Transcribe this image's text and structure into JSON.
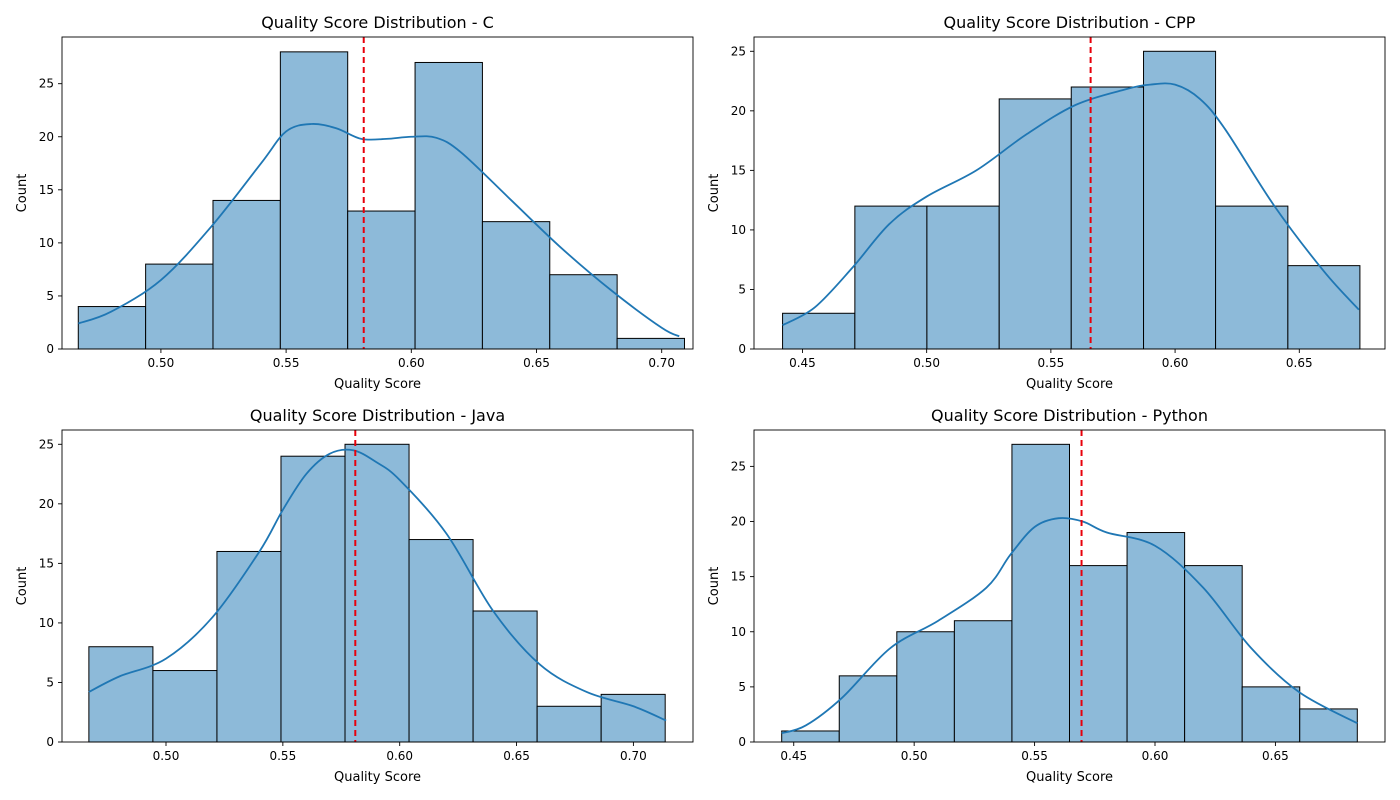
{
  "chart_data": [
    {
      "type": "bar",
      "title": "Quality Score Distribution - C",
      "xlabel": "Quality Score",
      "ylabel": "Count",
      "xlim": [
        0.4605,
        0.7125
      ],
      "ylim": [
        0,
        29.4
      ],
      "xticks": [
        "0.50",
        "0.55",
        "0.60",
        "0.65",
        "0.70"
      ],
      "yticks": [
        "0",
        "5",
        "10",
        "15",
        "20",
        "25"
      ],
      "bin_edges": [
        0.467,
        0.4939,
        0.5208,
        0.5477,
        0.5746,
        0.6015,
        0.6284,
        0.6553,
        0.6822,
        0.7091
      ],
      "values": [
        4,
        8,
        14,
        28,
        13,
        27,
        12,
        7,
        1
      ],
      "mean": 0.581,
      "kde": {
        "x": [
          0.467,
          0.48,
          0.5,
          0.52,
          0.54,
          0.55,
          0.56,
          0.57,
          0.58,
          0.59,
          0.6,
          0.61,
          0.62,
          0.64,
          0.66,
          0.68,
          0.7,
          0.707
        ],
        "y": [
          2.4,
          3.5,
          6.5,
          11.5,
          17.5,
          20.5,
          21.2,
          20.8,
          19.8,
          19.8,
          20.0,
          19.9,
          18.5,
          14.0,
          9.5,
          5.5,
          2.0,
          1.2
        ]
      }
    },
    {
      "type": "bar",
      "title": "Quality Score Distribution - CPP",
      "xlabel": "Quality Score",
      "ylabel": "Count",
      "xlim": [
        0.4305,
        0.6845
      ],
      "ylim": [
        0,
        26.2
      ],
      "xticks": [
        "0.45",
        "0.50",
        "0.55",
        "0.60",
        "0.65"
      ],
      "yticks": [
        "0",
        "5",
        "10",
        "15",
        "20",
        "25"
      ],
      "bin_edges": [
        0.442,
        0.4711,
        0.5001,
        0.5292,
        0.5582,
        0.5873,
        0.6163,
        0.6454,
        0.6744
      ],
      "values": [
        3,
        12,
        12,
        21,
        22,
        25,
        12,
        7
      ],
      "mean": 0.566,
      "kde": {
        "x": [
          0.442,
          0.455,
          0.47,
          0.485,
          0.5,
          0.52,
          0.54,
          0.56,
          0.58,
          0.59,
          0.6,
          0.61,
          0.62,
          0.64,
          0.66,
          0.674
        ],
        "y": [
          2.0,
          3.5,
          6.8,
          10.5,
          12.8,
          15.0,
          18.0,
          20.5,
          21.8,
          22.2,
          22.2,
          21.0,
          18.5,
          12.0,
          6.5,
          3.3
        ]
      }
    },
    {
      "type": "bar",
      "title": "Quality Score Distribution - Java",
      "xlabel": "Quality Score",
      "ylabel": "Count",
      "xlim": [
        0.4555,
        0.7255
      ],
      "ylim": [
        0,
        26.2
      ],
      "xticks": [
        "0.50",
        "0.55",
        "0.60",
        "0.65",
        "0.70"
      ],
      "yticks": [
        "0",
        "5",
        "10",
        "15",
        "20",
        "25"
      ],
      "bin_edges": [
        0.467,
        0.4944,
        0.5218,
        0.5492,
        0.5766,
        0.604,
        0.6314,
        0.6588,
        0.6862,
        0.7136
      ],
      "values": [
        8,
        6,
        16,
        24,
        25,
        17,
        11,
        3,
        4
      ],
      "mean": 0.581,
      "kde": {
        "x": [
          0.467,
          0.48,
          0.5,
          0.52,
          0.54,
          0.55,
          0.56,
          0.57,
          0.58,
          0.59,
          0.6,
          0.62,
          0.64,
          0.66,
          0.68,
          0.7,
          0.714
        ],
        "y": [
          4.2,
          5.5,
          7.0,
          10.5,
          16.0,
          19.5,
          22.5,
          24.2,
          24.5,
          23.5,
          22.0,
          17.5,
          11.0,
          6.5,
          4.2,
          3.0,
          1.8
        ]
      }
    },
    {
      "type": "bar",
      "title": "Quality Score Distribution - Python",
      "xlabel": "Quality Score",
      "ylabel": "Count",
      "xlim": [
        0.4335,
        0.6955
      ],
      "ylim": [
        0,
        28.3
      ],
      "xticks": [
        "0.45",
        "0.50",
        "0.55",
        "0.60",
        "0.65"
      ],
      "yticks": [
        "0",
        "5",
        "10",
        "15",
        "20",
        "25"
      ],
      "bin_edges": [
        0.445,
        0.4689,
        0.4928,
        0.5167,
        0.5406,
        0.5645,
        0.5884,
        0.6123,
        0.6362,
        0.6601,
        0.684
      ],
      "values": [
        1,
        6,
        10,
        11,
        27,
        16,
        19,
        16,
        5,
        3
      ],
      "mean": 0.5695,
      "kde": {
        "x": [
          0.445,
          0.455,
          0.47,
          0.49,
          0.51,
          0.53,
          0.54,
          0.55,
          0.56,
          0.57,
          0.58,
          0.6,
          0.62,
          0.64,
          0.66,
          0.684
        ],
        "y": [
          0.8,
          1.5,
          4.0,
          8.5,
          11.0,
          14.0,
          17.0,
          19.5,
          20.3,
          20.0,
          19.0,
          17.8,
          14.0,
          8.5,
          4.5,
          1.7
        ]
      }
    }
  ]
}
